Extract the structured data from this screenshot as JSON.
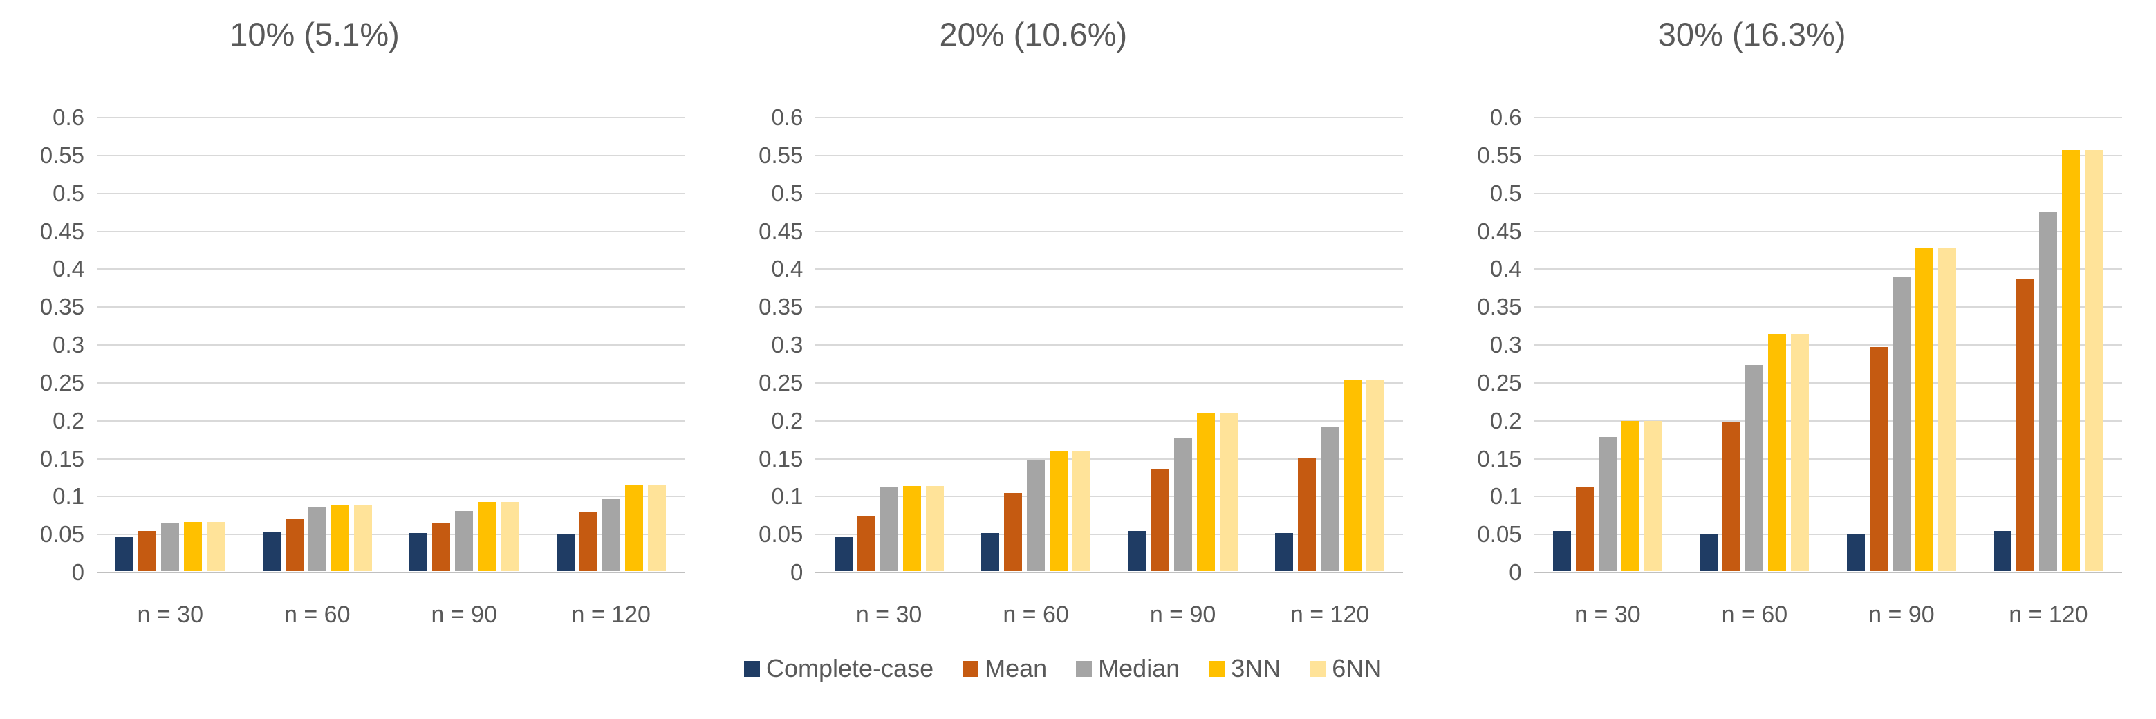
{
  "page": {
    "background": "#ffffff",
    "text_color": "#595959"
  },
  "colors": {
    "complete_case": "#1f3c64",
    "mean": "#c55a11",
    "median": "#a5a5a5",
    "nn3": "#ffc000",
    "nn6": "#ffe399",
    "gridline": "#d9d9d9",
    "axis_line": "#c0c0c0",
    "text": "#595959"
  },
  "legend": {
    "items": [
      {
        "label": "Complete-case",
        "color": "#1f3c64"
      },
      {
        "label": "Mean",
        "color": "#c55a11"
      },
      {
        "label": "Median",
        "color": "#a5a5a5"
      },
      {
        "label": "3NN",
        "color": "#ffc000"
      },
      {
        "label": "6NN",
        "color": "#ffe399"
      }
    ]
  },
  "axis": {
    "ylim": [
      0,
      0.6
    ],
    "ytick_step": 0.05,
    "ytick_labels": [
      "0",
      "0.05",
      "0.1",
      "0.15",
      "0.2",
      "0.25",
      "0.3",
      "0.35",
      "0.4",
      "0.45",
      "0.5",
      "0.55",
      "0.6"
    ],
    "grid": true
  },
  "chart_data": [
    {
      "type": "bar",
      "title": "10% (5.1%)",
      "categories": [
        "n = 30",
        "n = 60",
        "n = 90",
        "n = 120"
      ],
      "series": [
        {
          "name": "Complete-case",
          "color": "#1f3c64",
          "values": [
            0.045,
            0.052,
            0.05,
            0.049
          ]
        },
        {
          "name": "Mean",
          "color": "#c55a11",
          "values": [
            0.053,
            0.069,
            0.063,
            0.078
          ]
        },
        {
          "name": "Median",
          "color": "#a5a5a5",
          "values": [
            0.064,
            0.084,
            0.079,
            0.095
          ]
        },
        {
          "name": "3NN",
          "color": "#ffc000",
          "values": [
            0.065,
            0.087,
            0.091,
            0.113
          ]
        },
        {
          "name": "6NN",
          "color": "#ffe399",
          "values": [
            0.065,
            0.087,
            0.091,
            0.113
          ]
        }
      ],
      "xlabel": "",
      "ylabel": "",
      "ylim": [
        0,
        0.6
      ],
      "legend_position": "bottom-shared"
    },
    {
      "type": "bar",
      "title": "20% (10.6%)",
      "categories": [
        "n = 30",
        "n = 60",
        "n = 90",
        "n = 120"
      ],
      "series": [
        {
          "name": "Complete-case",
          "color": "#1f3c64",
          "values": [
            0.045,
            0.05,
            0.053,
            0.05
          ]
        },
        {
          "name": "Mean",
          "color": "#c55a11",
          "values": [
            0.073,
            0.103,
            0.135,
            0.15
          ]
        },
        {
          "name": "Median",
          "color": "#a5a5a5",
          "values": [
            0.11,
            0.146,
            0.175,
            0.191
          ]
        },
        {
          "name": "3NN",
          "color": "#ffc000",
          "values": [
            0.112,
            0.159,
            0.208,
            0.252
          ]
        },
        {
          "name": "6NN",
          "color": "#ffe399",
          "values": [
            0.112,
            0.159,
            0.208,
            0.252
          ]
        }
      ],
      "xlabel": "",
      "ylabel": "",
      "ylim": [
        0,
        0.6
      ],
      "legend_position": "bottom-shared"
    },
    {
      "type": "bar",
      "title": "30% (16.3%)",
      "categories": [
        "n = 30",
        "n = 60",
        "n = 90",
        "n = 120"
      ],
      "series": [
        {
          "name": "Complete-case",
          "color": "#1f3c64",
          "values": [
            0.053,
            0.049,
            0.048,
            0.053
          ]
        },
        {
          "name": "Mean",
          "color": "#c55a11",
          "values": [
            0.11,
            0.197,
            0.295,
            0.386
          ]
        },
        {
          "name": "Median",
          "color": "#a5a5a5",
          "values": [
            0.177,
            0.272,
            0.388,
            0.473
          ]
        },
        {
          "name": "3NN",
          "color": "#ffc000",
          "values": [
            0.198,
            0.313,
            0.426,
            0.555
          ]
        },
        {
          "name": "6NN",
          "color": "#ffe399",
          "values": [
            0.198,
            0.313,
            0.426,
            0.555
          ]
        }
      ],
      "xlabel": "",
      "ylabel": "",
      "ylim": [
        0,
        0.6
      ],
      "legend_position": "bottom-shared"
    }
  ]
}
